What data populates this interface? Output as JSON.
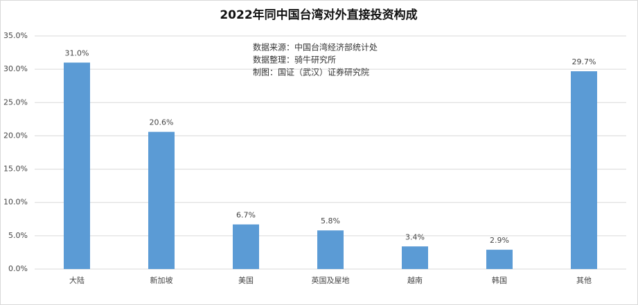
{
  "chart_data": {
    "type": "bar",
    "title": "2022年同中国台湾对外直接投资构成",
    "annotations": [
      "数据来源：中国台湾经济部统计处",
      "数据整理：骑牛研究所",
      "制图：国证（武汉）证券研究院"
    ],
    "categories": [
      "大陆",
      "新加坡",
      "美国",
      "英国及屋地",
      "越南",
      "韩国",
      "其他"
    ],
    "values": [
      31.0,
      20.6,
      6.7,
      5.8,
      3.4,
      2.9,
      29.7
    ],
    "value_labels": [
      "31.0%",
      "20.6%",
      "6.7%",
      "5.8%",
      "3.4%",
      "2.9%",
      "29.7%"
    ],
    "color": "#5b9bd5",
    "ylim": [
      0,
      35
    ],
    "yticks": [
      {
        "value": 0,
        "label": "0.0%"
      },
      {
        "value": 5,
        "label": "5.0%"
      },
      {
        "value": 10,
        "label": "10.0%"
      },
      {
        "value": 15,
        "label": "15.0%"
      },
      {
        "value": 20,
        "label": "20.0%"
      },
      {
        "value": 25,
        "label": "25.0%"
      },
      {
        "value": 30,
        "label": "30.0%"
      },
      {
        "value": 35,
        "label": "35.0%"
      }
    ],
    "grid": true
  }
}
